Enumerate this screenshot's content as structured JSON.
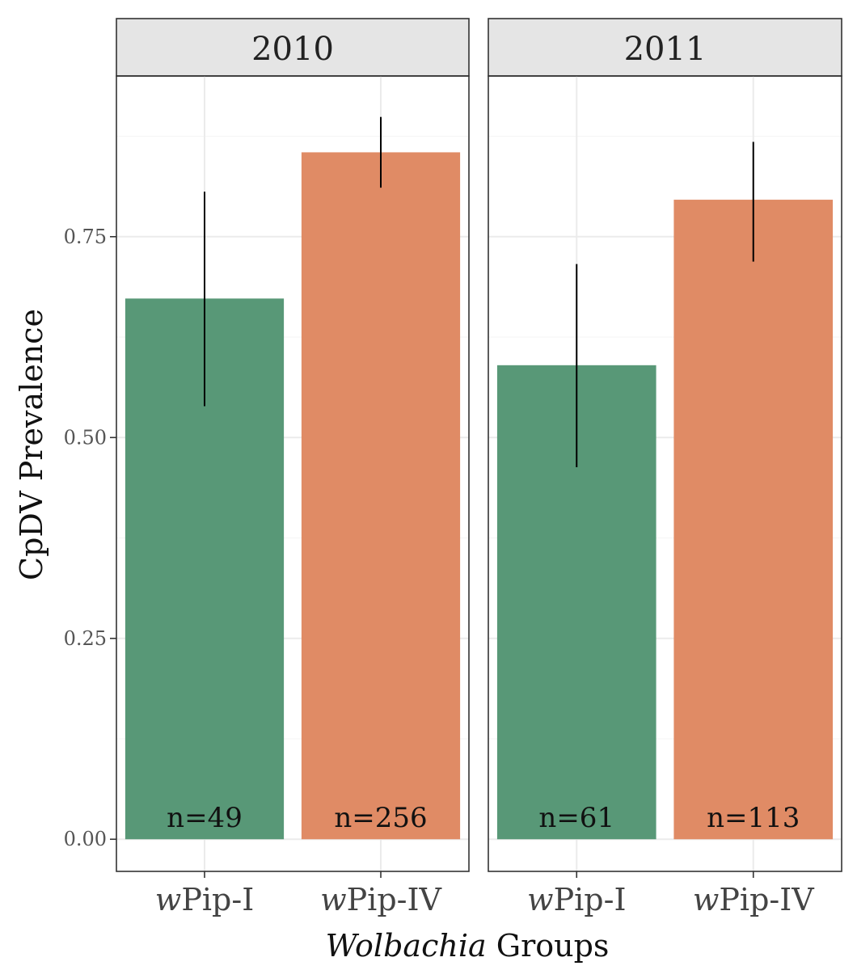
{
  "chart_data": {
    "type": "bar",
    "ylabel": "CpDV Prevalence",
    "xlabel_italic": "Wolbachia",
    "xlabel_rest": " Groups",
    "ylim": [
      -0.04,
      0.95
    ],
    "yticks": [
      0.0,
      0.25,
      0.5,
      0.75
    ],
    "ytick_labels": [
      "0.00",
      "0.25",
      "0.50",
      "0.75"
    ],
    "grid": true,
    "categories": [
      {
        "prefix": "w",
        "suffix": "Pip-I",
        "color": "#589877"
      },
      {
        "prefix": "w",
        "suffix": "Pip-IV",
        "color": "#E08B65"
      }
    ],
    "panels": [
      {
        "title": "2010",
        "bars": [
          {
            "value": 0.673,
            "err_low": 0.539,
            "err_high": 0.806,
            "n_label": "n=49"
          },
          {
            "value": 0.855,
            "err_low": 0.811,
            "err_high": 0.899,
            "n_label": "n=256"
          }
        ]
      },
      {
        "title": "2011",
        "bars": [
          {
            "value": 0.59,
            "err_low": 0.463,
            "err_high": 0.716,
            "n_label": "n=61"
          },
          {
            "value": 0.796,
            "err_low": 0.719,
            "err_high": 0.868,
            "n_label": "n=113"
          }
        ]
      }
    ]
  }
}
